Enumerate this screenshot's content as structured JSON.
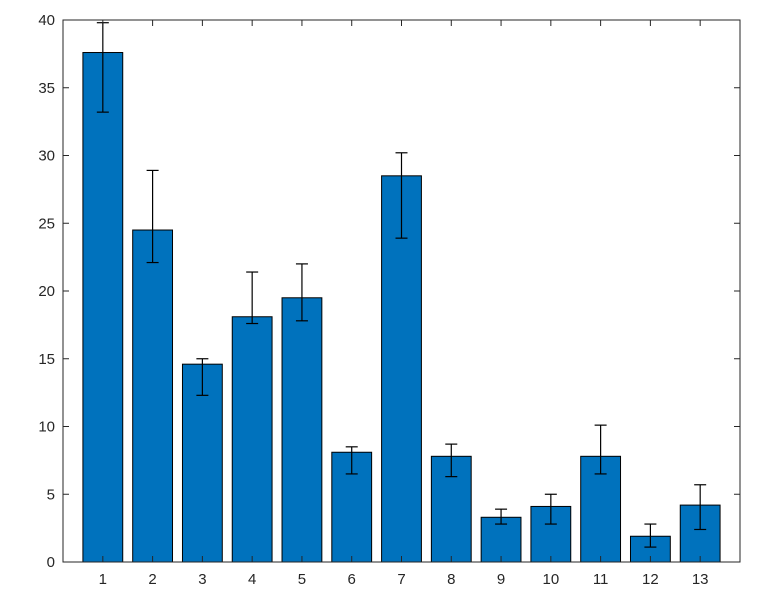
{
  "chart_data": {
    "type": "bar",
    "title": "",
    "xlabel": "",
    "ylabel": "",
    "categories": [
      "1",
      "2",
      "3",
      "4",
      "5",
      "6",
      "7",
      "8",
      "9",
      "10",
      "11",
      "12",
      "13"
    ],
    "values": [
      37.6,
      24.5,
      14.6,
      18.1,
      19.5,
      8.1,
      28.5,
      7.8,
      3.3,
      4.1,
      7.8,
      1.9,
      4.2
    ],
    "error_low": [
      33.2,
      22.1,
      12.3,
      17.6,
      17.8,
      6.5,
      23.9,
      6.3,
      2.8,
      2.8,
      6.5,
      1.1,
      2.4
    ],
    "error_high": [
      39.8,
      28.9,
      15.0,
      21.4,
      22.0,
      8.5,
      30.2,
      8.7,
      3.9,
      5.0,
      10.1,
      2.8,
      5.7
    ],
    "ylim": [
      0,
      40
    ],
    "yticks": [
      0,
      5,
      10,
      15,
      20,
      25,
      30,
      35,
      40
    ],
    "grid": false,
    "legend": "none",
    "colors": {
      "bar_fill": "#0072BD",
      "bar_edge": "#000000",
      "axis": "#262626"
    }
  }
}
